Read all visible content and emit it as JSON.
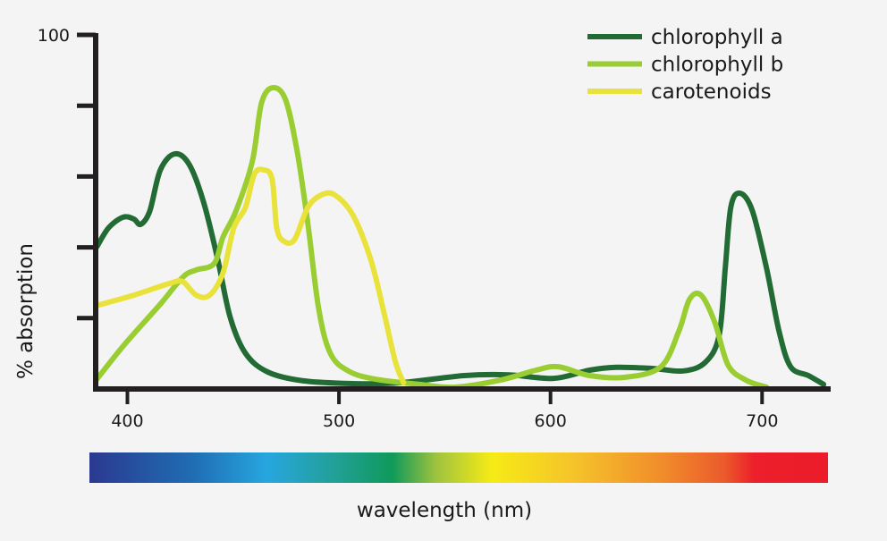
{
  "chart_data": {
    "type": "line",
    "title": "",
    "xlabel": "wavelength (nm)",
    "ylabel": "% absorption",
    "xlim": [
      385,
      732
    ],
    "ylim": [
      0,
      100
    ],
    "x_ticks": [
      400,
      500,
      600,
      700
    ],
    "x_tick_labels": [
      "400",
      "500",
      "600",
      "700"
    ],
    "y_ticks": [
      20,
      40,
      60,
      80,
      100
    ],
    "y_tick_labels": [
      "",
      "",
      "",
      "",
      "100"
    ],
    "grid": false,
    "legend_position": "top-right",
    "series": [
      {
        "name": "chlorophyll a",
        "color": "#236b35",
        "points": [
          [
            385.6,
            40.2
          ],
          [
            391.1,
            45.5
          ],
          [
            397.9,
            48.5
          ],
          [
            403,
            48
          ],
          [
            406.3,
            46.5
          ],
          [
            410.6,
            50.3
          ],
          [
            415.6,
            61.9
          ],
          [
            422.4,
            66.4
          ],
          [
            429.2,
            63.4
          ],
          [
            435.9,
            53
          ],
          [
            442.7,
            36.6
          ],
          [
            448.6,
            20.2
          ],
          [
            455.8,
            10.1
          ],
          [
            466.3,
            4.8
          ],
          [
            483.2,
            2.3
          ],
          [
            508.6,
            1.5
          ],
          [
            529.7,
            1.8
          ],
          [
            559.3,
            3.8
          ],
          [
            580.4,
            4
          ],
          [
            601.5,
            3
          ],
          [
            618.4,
            5.3
          ],
          [
            631.1,
            6.1
          ],
          [
            648,
            5.8
          ],
          [
            662.8,
            5.1
          ],
          [
            673.3,
            7.6
          ],
          [
            679.7,
            15.2
          ],
          [
            682.6,
            34.1
          ],
          [
            685.2,
            51.3
          ],
          [
            689.4,
            55.3
          ],
          [
            695.3,
            50.5
          ],
          [
            702.1,
            34.1
          ],
          [
            708,
            16.4
          ],
          [
            713.5,
            6.3
          ],
          [
            721.9,
            3.8
          ],
          [
            729.1,
            1.3
          ]
        ]
      },
      {
        "name": "chlorophyll b",
        "color": "#9acd32",
        "points": [
          [
            385.2,
            2.5
          ],
          [
            398.7,
            12.6
          ],
          [
            415.6,
            24
          ],
          [
            426.2,
            31.6
          ],
          [
            432.5,
            33.6
          ],
          [
            441,
            35.4
          ],
          [
            445.2,
            42.9
          ],
          [
            451.5,
            50.5
          ],
          [
            459.1,
            64.4
          ],
          [
            463.4,
            80.8
          ],
          [
            468.9,
            85.1
          ],
          [
            474.8,
            81.6
          ],
          [
            480.3,
            66.9
          ],
          [
            485.3,
            46.7
          ],
          [
            490.4,
            22.7
          ],
          [
            495.9,
            10.1
          ],
          [
            504.4,
            5.1
          ],
          [
            517,
            2.8
          ],
          [
            538.1,
            1.3
          ],
          [
            555,
            0.5
          ],
          [
            576.2,
            2.5
          ],
          [
            593.1,
            5.3
          ],
          [
            603.6,
            6.3
          ],
          [
            618.4,
            3.8
          ],
          [
            635.3,
            3.3
          ],
          [
            652.2,
            6.3
          ],
          [
            660.7,
            16.4
          ],
          [
            665.7,
            25.3
          ],
          [
            671.2,
            26.5
          ],
          [
            677.6,
            18.9
          ],
          [
            683.9,
            6.8
          ],
          [
            692.4,
            2.5
          ],
          [
            702.1,
            0.5
          ]
        ]
      },
      {
        "name": "carotenoids",
        "color": "#e8e23a",
        "points": [
          [
            385.2,
            23.5
          ],
          [
            403,
            26.5
          ],
          [
            419.9,
            29.8
          ],
          [
            426.2,
            30.3
          ],
          [
            432.5,
            26.5
          ],
          [
            438.9,
            26.5
          ],
          [
            445.2,
            32.8
          ],
          [
            450.3,
            45.5
          ],
          [
            455.8,
            51.3
          ],
          [
            460,
            60.6
          ],
          [
            464.2,
            61.9
          ],
          [
            468.4,
            59.3
          ],
          [
            470.6,
            45.5
          ],
          [
            474,
            41.7
          ],
          [
            479,
            42.2
          ],
          [
            485.3,
            51.3
          ],
          [
            491.7,
            54.8
          ],
          [
            498,
            54.8
          ],
          [
            506.5,
            49.2
          ],
          [
            515,
            36.6
          ],
          [
            521.3,
            21.5
          ],
          [
            526.7,
            7.6
          ],
          [
            530.5,
            1.8
          ]
        ]
      }
    ],
    "spectrum_bar": {
      "stops": [
        {
          "offset": 0,
          "color": "#2b3990"
        },
        {
          "offset": 0.14,
          "color": "#1f6db3"
        },
        {
          "offset": 0.24,
          "color": "#27a6df"
        },
        {
          "offset": 0.33,
          "color": "#22a09a"
        },
        {
          "offset": 0.41,
          "color": "#0f9a5a"
        },
        {
          "offset": 0.47,
          "color": "#9fc33e"
        },
        {
          "offset": 0.545,
          "color": "#f6eb16"
        },
        {
          "offset": 0.66,
          "color": "#f5c22b"
        },
        {
          "offset": 0.78,
          "color": "#f08a2b"
        },
        {
          "offset": 0.86,
          "color": "#eb5a2b"
        },
        {
          "offset": 0.9,
          "color": "#ec1f2b"
        },
        {
          "offset": 1,
          "color": "#ec1c2a"
        }
      ]
    }
  }
}
